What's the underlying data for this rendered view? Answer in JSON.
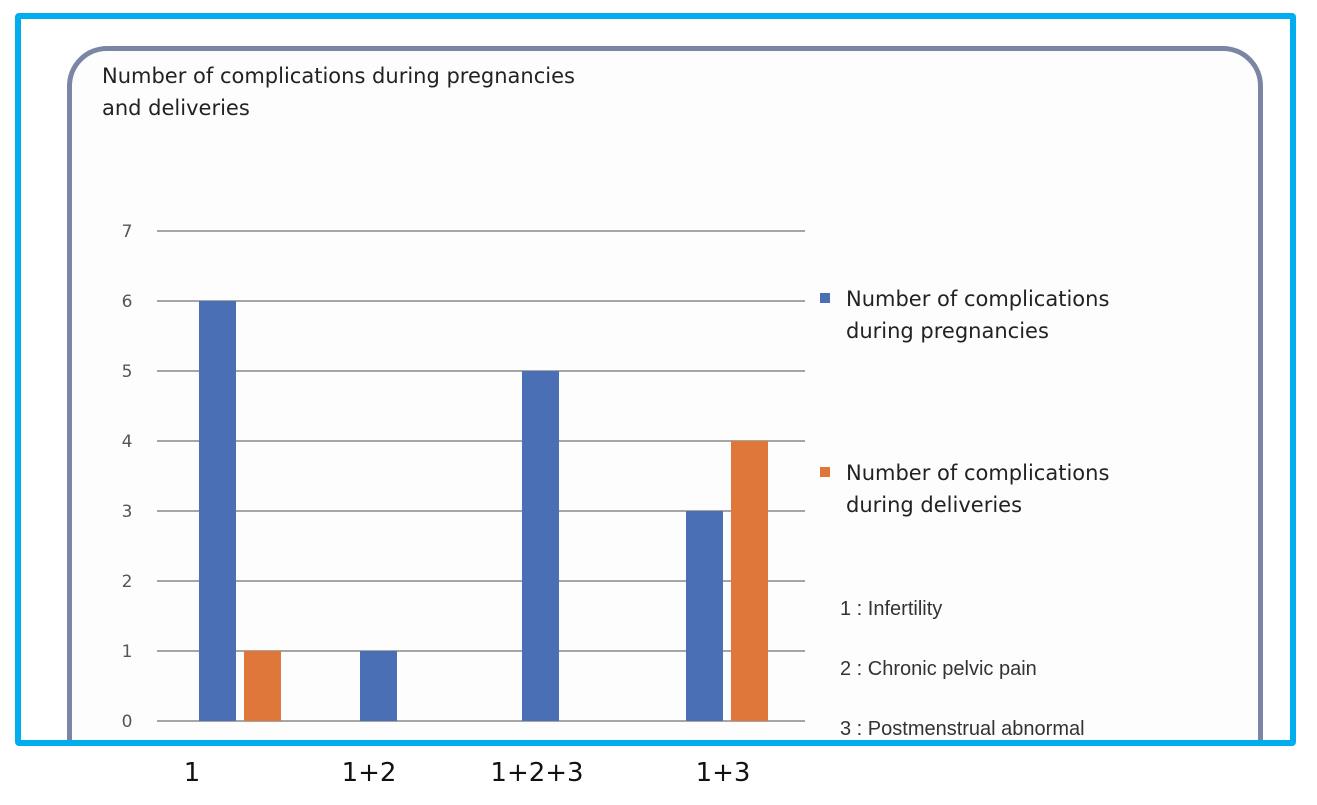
{
  "chart_data": {
    "type": "bar",
    "title": "Number of complications during pregnancies and deliveries",
    "title_lines": [
      "Number of complications during pregnancies",
      "and deliveries"
    ],
    "categories": [
      "1",
      "1+2",
      "1+2+3",
      "1+3"
    ],
    "series": [
      {
        "name": "Number of complications during pregnancies",
        "name_lines": [
          "Number of complications",
          "during pregnancies"
        ],
        "color": "#4a6fb5",
        "values": [
          6,
          1,
          5,
          3
        ]
      },
      {
        "name": "Number of complications during deliveries",
        "name_lines": [
          "Number of complications",
          "during deliveries"
        ],
        "color": "#e0773a",
        "values": [
          1,
          0,
          0,
          4
        ]
      }
    ],
    "yticks": [
      0,
      1,
      2,
      3,
      4,
      5,
      6,
      7
    ],
    "ylim": [
      0,
      7
    ],
    "xlabel": "",
    "ylabel": "",
    "grid": true,
    "legend_position": "right",
    "notes": [
      "1 : Infertility",
      "2 : Chronic pelvic pain",
      "3 : Postmenstrual abnormal"
    ]
  },
  "colors": {
    "frame_border": "#00adef",
    "card_border": "#7a86a4",
    "gridline": "#a6a6a6"
  }
}
